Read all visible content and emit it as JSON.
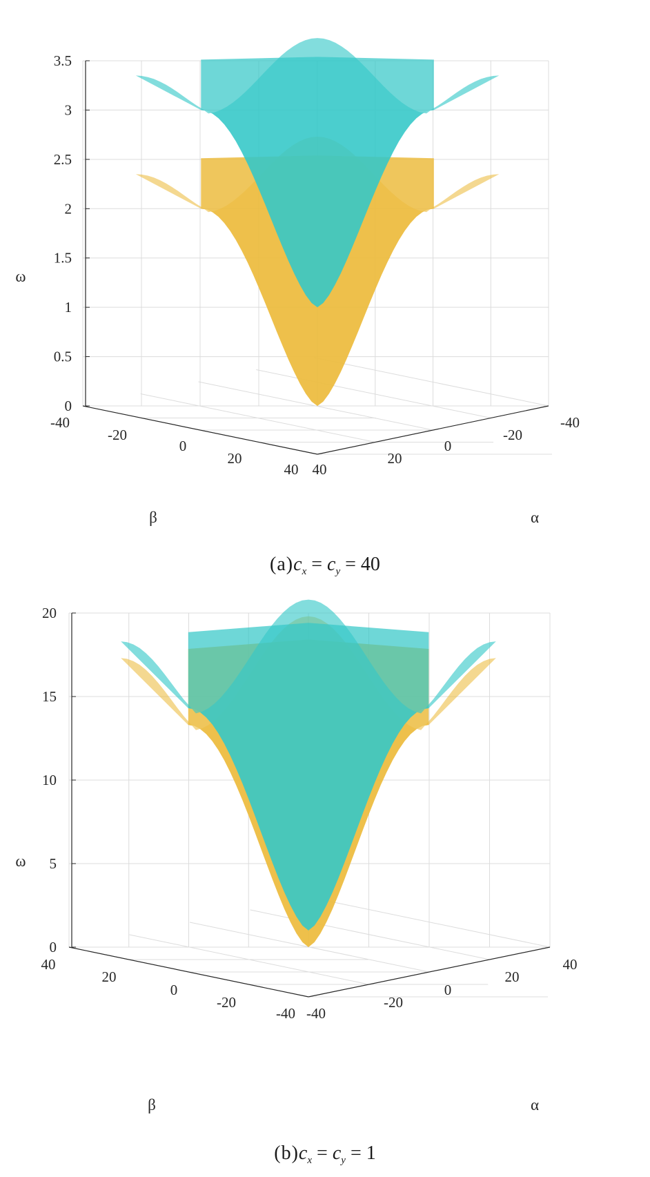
{
  "colors": {
    "cyan": "#36c8c8",
    "gold": "#ecbc40",
    "overlap": "#8ab65c",
    "grid": "#dcdcdc",
    "axis": "#262626"
  },
  "panels": [
    {
      "caption": {
        "tag": "(a)",
        "c1": "c",
        "s1": "x",
        "eq1": " = ",
        "c2": "c",
        "s2": "y",
        "eq2": " = 40"
      },
      "z_label": "ω",
      "alpha_label": "α",
      "beta_label": "β",
      "z_ticks": [
        "0",
        "0.5",
        "1",
        "1.5",
        "2",
        "2.5",
        "3",
        "3.5"
      ],
      "alpha_ticks": [
        "40",
        "20",
        "0",
        "-20",
        "-40"
      ],
      "beta_ticks": [
        "-40",
        "-20",
        "0",
        "20",
        "40"
      ]
    },
    {
      "caption": {
        "tag": "(b)",
        "c1": "c",
        "s1": "x",
        "eq1": " = ",
        "c2": "c",
        "s2": "y",
        "eq2": " = 1"
      },
      "z_label": "ω",
      "alpha_label": "α",
      "beta_label": "β",
      "z_ticks": [
        "0",
        "5",
        "10",
        "15",
        "20"
      ],
      "alpha_ticks": [
        "-40",
        "-20",
        "0",
        "20",
        "40"
      ],
      "beta_ticks": [
        "40",
        "20",
        "0",
        "-20",
        "-40"
      ]
    }
  ],
  "chart_data": [
    {
      "type": "surface",
      "title": "",
      "xlabel": "α",
      "ylabel": "β",
      "zlabel": "ω",
      "x_range": [
        -40,
        40
      ],
      "y_range": [
        -40,
        40
      ],
      "zlim": [
        0,
        3.5
      ],
      "grid": true,
      "series": [
        {
          "color": "cyan",
          "min": 1.0,
          "max": 3.73,
          "corner": 3.35,
          "edge_mid": 3.0
        },
        {
          "color": "gold",
          "min": 0.0,
          "max": 2.73,
          "corner": 2.35,
          "edge_mid": 2.0
        }
      ]
    },
    {
      "type": "surface",
      "title": "",
      "xlabel": "α",
      "ylabel": "β",
      "zlabel": "ω",
      "x_range": [
        -40,
        40
      ],
      "y_range": [
        -40,
        40
      ],
      "zlim": [
        0,
        20
      ],
      "grid": true,
      "series": [
        {
          "color": "cyan",
          "min": 1.0,
          "max": 20.8,
          "corner": 18.3,
          "edge_mid": 14.3
        },
        {
          "color": "gold",
          "min": 0.0,
          "max": 19.8,
          "corner": 17.3,
          "edge_mid": 13.3
        }
      ]
    }
  ]
}
